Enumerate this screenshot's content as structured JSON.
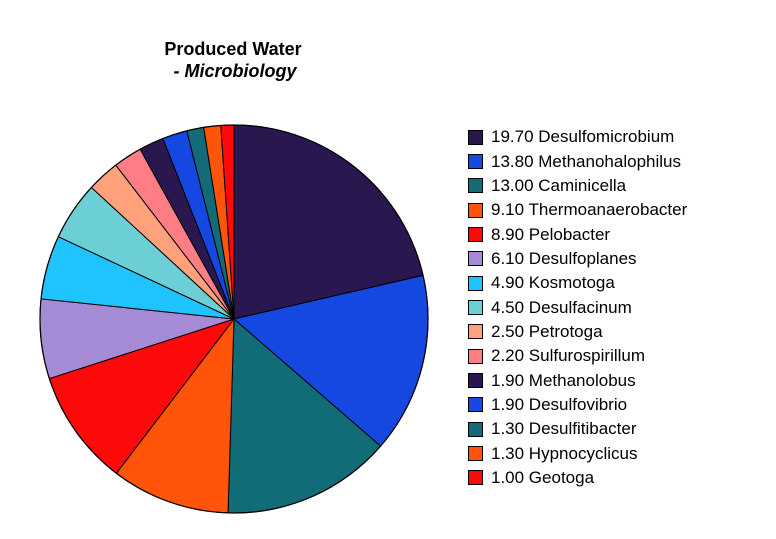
{
  "chart_data": {
    "type": "pie",
    "title": "Produced Water",
    "subtitle": "- Microbiology",
    "slices": [
      {
        "value": 19.7,
        "value_label": "19.70",
        "name": "Desulfomicrobium",
        "color": "#2b1750"
      },
      {
        "value": 13.8,
        "value_label": "13.80",
        "name": "Methanohalophilus",
        "color": "#1548e0"
      },
      {
        "value": 13.0,
        "value_label": "13.00",
        "name": "Caminicella",
        "color": "#126c78"
      },
      {
        "value": 9.1,
        "value_label": "9.10",
        "name": "Thermoanaerobacter",
        "color": "#ff5409"
      },
      {
        "value": 8.9,
        "value_label": "8.90",
        "name": "Pelobacter",
        "color": "#ff0a0a"
      },
      {
        "value": 6.1,
        "value_label": "6.10",
        "name": "Desulfoplanes",
        "color": "#a58ad6"
      },
      {
        "value": 4.9,
        "value_label": "4.90",
        "name": "Kosmotoga",
        "color": "#1fc4ff"
      },
      {
        "value": 4.5,
        "value_label": "4.50",
        "name": "Desulfacinum",
        "color": "#6dcfd6"
      },
      {
        "value": 2.5,
        "value_label": "2.50",
        "name": "Petrotoga",
        "color": "#ffa27c"
      },
      {
        "value": 2.2,
        "value_label": "2.20",
        "name": "Sulfurospirillum",
        "color": "#ff7e86"
      },
      {
        "value": 1.9,
        "value_label": "1.90",
        "name": "Methanolobus",
        "color": "#2b1750"
      },
      {
        "value": 1.9,
        "value_label": "1.90",
        "name": "Desulfovibrio",
        "color": "#1548e0"
      },
      {
        "value": 1.3,
        "value_label": "1.30",
        "name": "Desulfitibacter",
        "color": "#126c78"
      },
      {
        "value": 1.3,
        "value_label": "1.30",
        "name": "Hypnocyclicus",
        "color": "#ff5409"
      },
      {
        "value": 1.0,
        "value_label": "1.00",
        "name": "Geotoga",
        "color": "#ff0a0a"
      }
    ],
    "legend_position": "right"
  }
}
